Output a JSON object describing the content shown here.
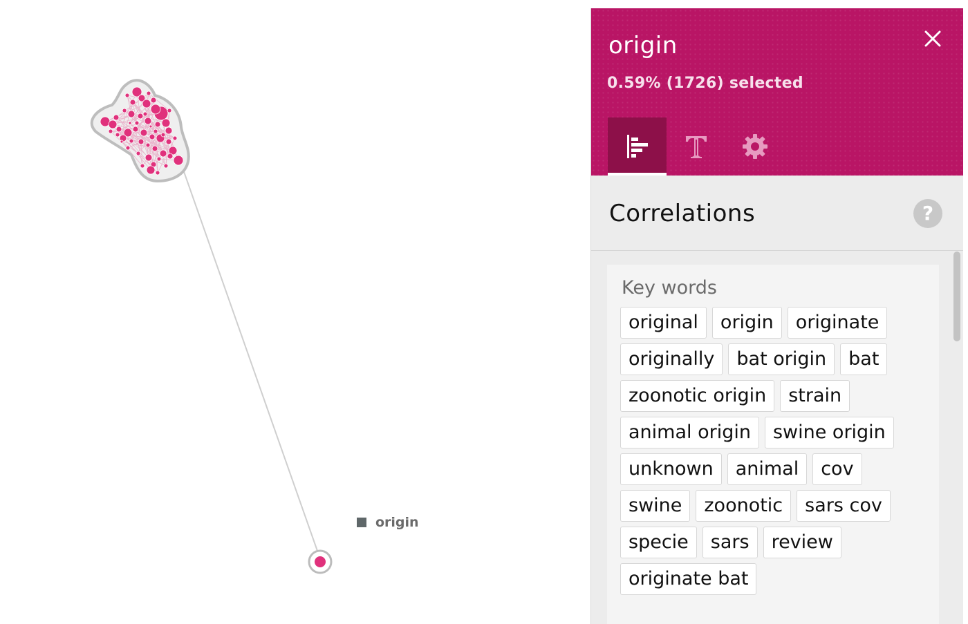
{
  "colors": {
    "node": "#e0317c",
    "node_stroke": "#b7b7b7",
    "header_bg": "#b91565",
    "legend_swatch": "#5f6769"
  },
  "graph": {
    "legend_label": "origin",
    "cluster_large": "cluster",
    "cluster_small": "single node"
  },
  "panel": {
    "title": "origin",
    "subtitle": "0.59% (1726) selected",
    "close_icon": "close-icon",
    "tabs": [
      {
        "icon": "bar-chart-icon",
        "active": true
      },
      {
        "icon": "text-icon",
        "active": false
      },
      {
        "icon": "gear-icon",
        "active": false
      }
    ],
    "section_title": "Correlations",
    "help_label": "?",
    "keywords_heading": "Key words",
    "keywords": [
      "original",
      "origin",
      "originate",
      "originally",
      "bat origin",
      "bat",
      "zoonotic origin",
      "strain",
      "animal origin",
      "swine origin",
      "unknown",
      "animal",
      "cov",
      "swine",
      "zoonotic",
      "sars cov",
      "specie",
      "sars",
      "review",
      "originate bat"
    ]
  }
}
